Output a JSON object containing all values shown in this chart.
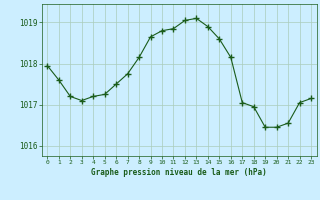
{
  "hours": [
    0,
    1,
    2,
    3,
    4,
    5,
    6,
    7,
    8,
    9,
    10,
    11,
    12,
    13,
    14,
    15,
    16,
    17,
    18,
    19,
    20,
    21,
    22,
    23
  ],
  "pressure": [
    1017.95,
    1017.6,
    1017.2,
    1017.1,
    1017.2,
    1017.25,
    1017.5,
    1017.75,
    1018.15,
    1018.65,
    1018.8,
    1018.85,
    1019.05,
    1019.1,
    1018.9,
    1018.6,
    1018.15,
    1017.05,
    1016.95,
    1016.45,
    1016.45,
    1016.55,
    1017.05,
    1017.15
  ],
  "line_color": "#1a5c1a",
  "marker": "+",
  "marker_size": 4,
  "bg_color": "#cceeff",
  "grid_color": "#aaccbb",
  "xlabel": "Graphe pression niveau de la mer (hPa)",
  "xlabel_color": "#1a5c1a",
  "tick_color": "#1a5c1a",
  "ylabel_ticks": [
    1016,
    1017,
    1018,
    1019
  ],
  "ylim": [
    1015.75,
    1019.45
  ],
  "xlim": [
    -0.5,
    23.5
  ],
  "figsize": [
    3.2,
    2.0
  ],
  "dpi": 100
}
